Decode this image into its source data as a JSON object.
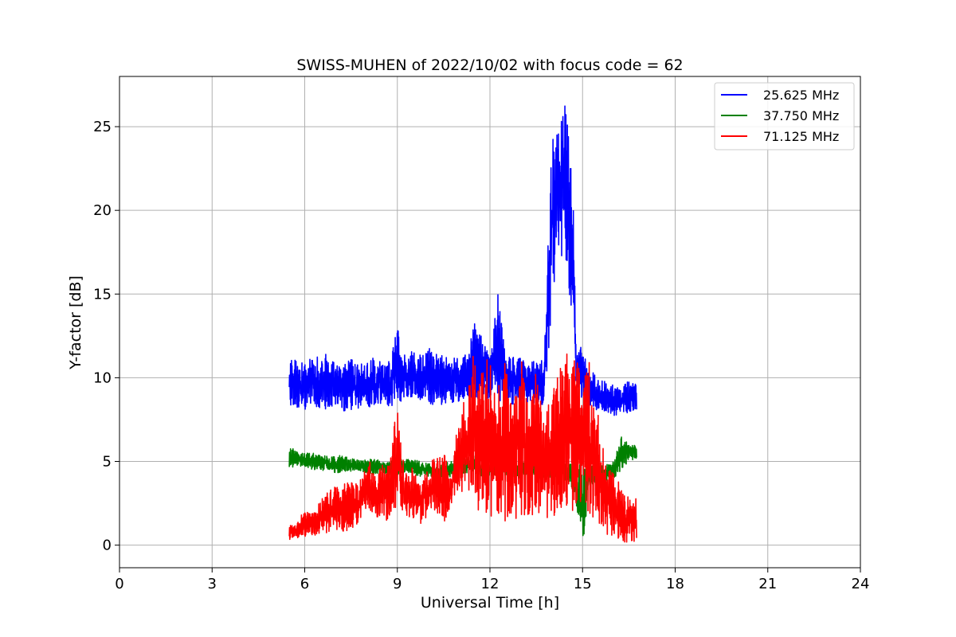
{
  "chart_data": {
    "type": "line",
    "title": "SWISS-MUHEN of 2022/10/02 with focus code = 62",
    "xlabel": "Universal Time [h]",
    "ylabel": "Y-factor [dB]",
    "xlim": [
      0,
      24
    ],
    "ylim": [
      -1.35,
      28
    ],
    "xticks": [
      0,
      3,
      6,
      9,
      12,
      15,
      18,
      21,
      24
    ],
    "yticks": [
      0,
      5,
      10,
      15,
      20,
      25
    ],
    "grid": true,
    "legend_position": "top-right",
    "series": [
      {
        "name": "25.625 MHz",
        "color": "#0000ff",
        "x": [
          5.5,
          5.75,
          6.0,
          6.25,
          6.5,
          6.75,
          7.0,
          7.25,
          7.5,
          7.75,
          8.0,
          8.25,
          8.5,
          8.75,
          9.0,
          9.25,
          9.5,
          9.75,
          10.0,
          10.25,
          10.5,
          10.75,
          11.0,
          11.25,
          11.5,
          11.75,
          12.0,
          12.25,
          12.5,
          12.75,
          13.0,
          13.25,
          13.5,
          13.75,
          14.0,
          14.1,
          14.2,
          14.3,
          14.4,
          14.5,
          14.6,
          14.7,
          14.8,
          15.0,
          15.25,
          15.5,
          15.75,
          16.0,
          16.25,
          16.5,
          16.75
        ],
        "min": [
          8.3,
          8.2,
          8.0,
          8.3,
          8.0,
          8.2,
          8.3,
          8.0,
          7.9,
          8.2,
          8.0,
          8.3,
          8.5,
          8.2,
          8.4,
          8.6,
          8.7,
          8.5,
          8.4,
          8.3,
          8.2,
          8.5,
          8.6,
          8.8,
          8.7,
          8.5,
          8.8,
          8.5,
          8.6,
          8.4,
          8.2,
          8.4,
          8.3,
          8.1,
          14.0,
          15.5,
          16.5,
          17.0,
          17.5,
          16.5,
          14.5,
          12.0,
          9.5,
          8.5,
          8.3,
          8.0,
          7.8,
          7.6,
          7.5,
          7.7,
          8.0
        ],
        "max": [
          11.2,
          11.0,
          11.0,
          11.3,
          11.5,
          11.4,
          10.8,
          10.9,
          11.1,
          10.9,
          11.0,
          11.2,
          10.9,
          11.0,
          13.0,
          11.3,
          11.6,
          11.4,
          12.3,
          11.6,
          11.4,
          11.2,
          11.2,
          11.4,
          13.5,
          12.4,
          11.3,
          15.9,
          11.3,
          11.3,
          11.6,
          10.9,
          11.2,
          11.2,
          24.0,
          25.0,
          25.5,
          26.0,
          26.7,
          25.5,
          24.0,
          20.5,
          11.5,
          12.0,
          10.5,
          10.0,
          9.8,
          9.6,
          9.5,
          9.8,
          10.2
        ]
      },
      {
        "name": "37.750 MHz",
        "color": "#008000",
        "x": [
          5.5,
          5.75,
          6.0,
          6.25,
          6.5,
          6.75,
          7.0,
          7.25,
          7.5,
          7.75,
          8.0,
          8.25,
          8.5,
          8.75,
          9.0,
          9.25,
          9.5,
          9.75,
          10.0,
          10.25,
          10.5,
          10.75,
          11.0,
          11.25,
          11.5,
          11.75,
          12.0,
          12.25,
          12.5,
          12.75,
          13.0,
          13.25,
          13.5,
          13.75,
          14.0,
          14.25,
          14.5,
          14.75,
          15.0,
          15.25,
          15.5,
          15.75,
          16.0,
          16.25,
          16.5,
          16.75
        ],
        "min": [
          4.6,
          4.7,
          4.7,
          4.5,
          4.5,
          4.4,
          4.3,
          4.4,
          4.3,
          4.4,
          4.3,
          4.2,
          4.3,
          4.2,
          4.2,
          4.3,
          4.2,
          4.1,
          4.1,
          4.0,
          4.0,
          4.1,
          4.2,
          4.3,
          4.2,
          4.0,
          4.1,
          4.0,
          4.1,
          4.0,
          4.0,
          4.1,
          4.0,
          3.9,
          4.0,
          4.0,
          3.8,
          3.0,
          0.0,
          3.5,
          3.8,
          3.8,
          3.9,
          4.5,
          5.0,
          5.2
        ],
        "max": [
          5.9,
          5.6,
          5.5,
          5.5,
          5.4,
          5.3,
          5.3,
          5.4,
          5.2,
          5.1,
          5.1,
          5.2,
          5.0,
          5.0,
          5.2,
          5.1,
          5.2,
          5.0,
          4.9,
          4.8,
          4.9,
          5.0,
          5.4,
          5.2,
          5.4,
          5.2,
          5.1,
          5.0,
          5.2,
          5.0,
          5.0,
          5.1,
          5.0,
          4.9,
          4.9,
          4.9,
          4.9,
          4.8,
          4.8,
          4.8,
          4.7,
          4.8,
          5.0,
          6.5,
          6.1,
          5.9
        ]
      },
      {
        "name": "71.125 MHz",
        "color": "#ff0000",
        "x": [
          5.5,
          5.75,
          6.0,
          6.25,
          6.5,
          6.75,
          7.0,
          7.25,
          7.5,
          7.75,
          8.0,
          8.25,
          8.5,
          8.75,
          9.0,
          9.25,
          9.5,
          9.75,
          10.0,
          10.25,
          10.5,
          10.75,
          11.0,
          11.25,
          11.5,
          11.75,
          12.0,
          12.25,
          12.5,
          12.75,
          13.0,
          13.25,
          13.5,
          13.75,
          14.0,
          14.25,
          14.5,
          14.75,
          15.0,
          15.25,
          15.5,
          15.75,
          16.0,
          16.25,
          16.5,
          16.75
        ],
        "min": [
          0.3,
          0.4,
          0.5,
          0.6,
          0.5,
          0.7,
          0.6,
          0.8,
          0.9,
          1.2,
          1.5,
          1.8,
          1.5,
          1.4,
          2.0,
          1.8,
          1.6,
          1.2,
          1.8,
          2.1,
          1.2,
          2.5,
          2.8,
          3.0,
          2.5,
          1.6,
          1.4,
          1.5,
          1.2,
          1.6,
          1.3,
          1.5,
          2.0,
          1.5,
          1.3,
          1.8,
          2.0,
          2.0,
          2.2,
          1.8,
          1.0,
          0.5,
          0.4,
          0.2,
          0.0,
          0.3
        ],
        "max": [
          1.2,
          1.3,
          2.2,
          1.9,
          2.8,
          3.2,
          3.5,
          3.8,
          4.0,
          3.5,
          5.5,
          4.3,
          4.8,
          5.1,
          8.5,
          4.3,
          4.7,
          4.0,
          4.6,
          5.5,
          5.8,
          4.0,
          8.5,
          9.5,
          12.3,
          12.0,
          11.3,
          9.5,
          11.0,
          7.8,
          12.5,
          8.0,
          10.5,
          7.5,
          9.0,
          10.5,
          11.5,
          12.6,
          10.5,
          11.0,
          8.0,
          5.2,
          4.3,
          3.5,
          2.8,
          2.8
        ]
      }
    ]
  }
}
